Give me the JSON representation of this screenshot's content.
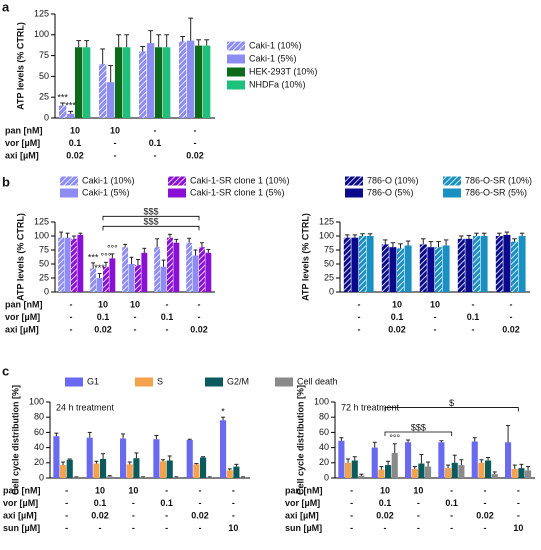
{
  "chart_data": [
    {
      "type": "bar",
      "panel": "a",
      "ylabel": "ATP levels (% CTRL)",
      "ylim": [
        0,
        125
      ],
      "yticks": [
        0,
        25,
        50,
        75,
        100,
        125
      ],
      "legend": "right",
      "series": [
        {
          "name": "Caki-1 (10%)",
          "color": "#8c8cf2",
          "hatch": true,
          "values": [
            15,
            65,
            80,
            92
          ],
          "errors": [
            3,
            18,
            6,
            6
          ]
        },
        {
          "name": "Caki-1 (5%)",
          "color": "#8c8cf2",
          "hatch": false,
          "values": [
            5,
            43,
            90,
            93
          ],
          "errors": [
            3,
            20,
            15,
            27
          ]
        },
        {
          "name": "HEK-293T (10%)",
          "color": "#0b6b1a",
          "hatch": false,
          "values": [
            85,
            85,
            85,
            87
          ],
          "errors": [
            8,
            15,
            15,
            7
          ]
        },
        {
          "name": "NHDFa (10%)",
          "color": "#1fbf7c",
          "hatch": false,
          "values": [
            85,
            85,
            85,
            87
          ],
          "errors": [
            8,
            15,
            15,
            7
          ]
        }
      ],
      "conditions": [
        {
          "label": "pan [nM]",
          "values": [
            "10",
            "10",
            "-",
            "-"
          ]
        },
        {
          "label": "vor [µM]",
          "values": [
            "0.1",
            "-",
            "0.1",
            "-"
          ]
        },
        {
          "label": "axi [µM]",
          "values": [
            "0.02",
            "-",
            "-",
            "0.02"
          ]
        }
      ],
      "annotations": [
        {
          "text": "***",
          "series": 0,
          "category": 0
        },
        {
          "text": "***",
          "series": 1,
          "category": 0
        }
      ]
    },
    {
      "type": "bar",
      "panel": "b",
      "ylabel": "ATP levels (% CTRL)",
      "ylim": [
        0,
        125
      ],
      "yticks": [
        0,
        25,
        50,
        75,
        100,
        125
      ],
      "legend": "top",
      "series": [
        {
          "name": "Caki-1 (10%)",
          "color": "#8c8cf2",
          "hatch": true,
          "values": [
            97,
            42,
            80,
            80,
            88
          ],
          "errors": [
            10,
            10,
            5,
            15,
            8
          ]
        },
        {
          "name": "Caki-1 (5%)",
          "color": "#8c8cf2",
          "hatch": false,
          "values": [
            97,
            25,
            50,
            45,
            65
          ],
          "errors": [
            8,
            8,
            12,
            12,
            10
          ]
        },
        {
          "name": "Caki-1-SR clone 1 (10%)",
          "color": "#8a10d6",
          "hatch": true,
          "values": [
            95,
            45,
            48,
            97,
            80
          ],
          "errors": [
            5,
            8,
            10,
            6,
            8
          ]
        },
        {
          "name": "Caki-1-SR clone 1 (5%)",
          "color": "#8a10d6",
          "hatch": false,
          "values": [
            102,
            60,
            70,
            88,
            70
          ],
          "errors": [
            3,
            8,
            8,
            6,
            6
          ]
        }
      ],
      "conditions": [
        {
          "label": "pan [nM]",
          "values": [
            "-",
            "10",
            "10",
            "-",
            "-"
          ]
        },
        {
          "label": "vor [µM]",
          "values": [
            "-",
            "0.1",
            "-",
            "0.1",
            "-"
          ]
        },
        {
          "label": "axi [µM]",
          "values": [
            "-",
            "0.02",
            "-",
            "-",
            "0.02"
          ]
        }
      ],
      "annotations": [
        {
          "text": "***",
          "series": 0,
          "category": 1
        },
        {
          "text": "***",
          "series": 1,
          "category": 1
        },
        {
          "text": "°°°",
          "series": 2,
          "category": 1
        },
        {
          "text": "°°°",
          "series": 3,
          "category": 1
        }
      ],
      "brackets": [
        {
          "text": "$$$",
          "from": 1,
          "to": 4
        },
        {
          "text": "$$$",
          "from": 1,
          "to": 4
        }
      ]
    },
    {
      "type": "bar",
      "ylabel": "ATP levels (% CTRL)",
      "ylim": [
        0,
        125
      ],
      "yticks": [
        0,
        25,
        50,
        75,
        100,
        125
      ],
      "legend": "top",
      "series": [
        {
          "name": "786-O (10%)",
          "color": "#0a0a8c",
          "hatch": true,
          "values": [
            97,
            85,
            85,
            95,
            100
          ],
          "errors": [
            5,
            8,
            10,
            5,
            5
          ]
        },
        {
          "name": "786-O (5%)",
          "color": "#0a0a8c",
          "hatch": false,
          "values": [
            97,
            80,
            80,
            95,
            102
          ],
          "errors": [
            5,
            8,
            10,
            6,
            5
          ]
        },
        {
          "name": "786-O-SR (10%)",
          "color": "#1a90c2",
          "hatch": true,
          "values": [
            100,
            78,
            80,
            100,
            90
          ],
          "errors": [
            4,
            8,
            10,
            5,
            5
          ]
        },
        {
          "name": "786-O-SR (5%)",
          "color": "#1a90c2",
          "hatch": false,
          "values": [
            100,
            83,
            83,
            100,
            100
          ],
          "errors": [
            4,
            8,
            10,
            5,
            5
          ]
        }
      ],
      "conditions": [
        {
          "values": [
            "-",
            "10",
            "10",
            "-",
            "-"
          ]
        },
        {
          "values": [
            "-",
            "0.1",
            "-",
            "0.1",
            "-"
          ]
        },
        {
          "values": [
            "-",
            "0.02",
            "-",
            "-",
            "0.02"
          ]
        }
      ]
    },
    {
      "type": "bar",
      "panel": "c",
      "title": "24 h treatment",
      "ylabel": "Cell cycle distribution [%]",
      "ylim": [
        0,
        100
      ],
      "yticks": [
        0,
        20,
        40,
        60,
        80,
        100
      ],
      "legend": "top-row",
      "series": [
        {
          "name": "G1",
          "color": "#6a6af0",
          "hatch": false,
          "values": [
            55,
            53,
            52,
            51,
            50,
            76
          ],
          "errors": [
            4,
            7,
            6,
            5,
            1,
            4
          ]
        },
        {
          "name": "S",
          "color": "#f5a24c",
          "hatch": false,
          "values": [
            17,
            19,
            18,
            22,
            18,
            10
          ],
          "errors": [
            4,
            3,
            3,
            2,
            1,
            2
          ]
        },
        {
          "name": "G2/M",
          "color": "#0b5b5e",
          "hatch": false,
          "values": [
            24,
            25,
            26,
            23,
            27,
            15
          ],
          "errors": [
            1,
            7,
            7,
            6,
            1,
            3
          ]
        },
        {
          "name": "Cell death",
          "color": "#8a8a8a",
          "hatch": false,
          "values": [
            1,
            2,
            1,
            1,
            1,
            1
          ],
          "errors": [
            0.5,
            1,
            0.5,
            0.5,
            0.5,
            0.5
          ]
        }
      ],
      "conditions": [
        {
          "label": "pan [nM]",
          "values": [
            "-",
            "10",
            "10",
            "-",
            "-",
            "-"
          ]
        },
        {
          "label": "vor [µM]",
          "values": [
            "-",
            "0.1",
            "-",
            "0.1",
            "-",
            "-"
          ]
        },
        {
          "label": "axi [µM]",
          "values": [
            "-",
            "0.02",
            "-",
            "-",
            "0.02",
            "-"
          ]
        },
        {
          "label": "sun [µM]",
          "values": [
            "-",
            "-",
            "-",
            "-",
            "-",
            "10"
          ]
        }
      ],
      "annotations": [
        {
          "text": "*",
          "series": 0,
          "category": 5
        }
      ]
    },
    {
      "type": "bar",
      "title": "72 h treatment",
      "ylabel": "Cell cycle distribution [%]",
      "ylim": [
        0,
        100
      ],
      "yticks": [
        0,
        20,
        40,
        60,
        80,
        100
      ],
      "legend": "none",
      "series": [
        {
          "color": "#6a6af0",
          "hatch": false,
          "values": [
            49,
            40,
            47,
            47,
            48,
            47
          ],
          "errors": [
            4,
            7,
            3,
            2,
            5,
            22
          ]
        },
        {
          "color": "#f5a24c",
          "hatch": false,
          "values": [
            20,
            11,
            12,
            13,
            20,
            12
          ],
          "errors": [
            5,
            4,
            3,
            4,
            4,
            5
          ]
        },
        {
          "color": "#0b5b5e",
          "hatch": false,
          "values": [
            23,
            17,
            19,
            20,
            23,
            13
          ],
          "errors": [
            5,
            5,
            12,
            10,
            4,
            5
          ]
        },
        {
          "color": "#8a8a8a",
          "hatch": false,
          "values": [
            3,
            33,
            15,
            17,
            5,
            10
          ],
          "errors": [
            2,
            12,
            6,
            7,
            3,
            5
          ]
        }
      ],
      "conditions": [
        {
          "label": "pan [nM]",
          "values": [
            "-",
            "10",
            "10",
            "-",
            "-",
            "-"
          ]
        },
        {
          "label": "vor [µM]",
          "values": [
            "-",
            "0.1",
            "-",
            "0.1",
            "-",
            "-"
          ]
        },
        {
          "label": "axi [µM]",
          "values": [
            "-",
            "0.02",
            "-",
            "-",
            "0.02",
            "-"
          ]
        },
        {
          "label": "sun [µM]",
          "values": [
            "-",
            "-",
            "-",
            "-",
            "-",
            "10"
          ]
        }
      ],
      "annotations": [
        {
          "text": "°°°",
          "series": 3,
          "category": 1
        }
      ],
      "brackets": [
        {
          "text": "$$$",
          "from": 1,
          "to": 3
        },
        {
          "text": "$",
          "from": 1,
          "to": 5
        }
      ]
    }
  ]
}
